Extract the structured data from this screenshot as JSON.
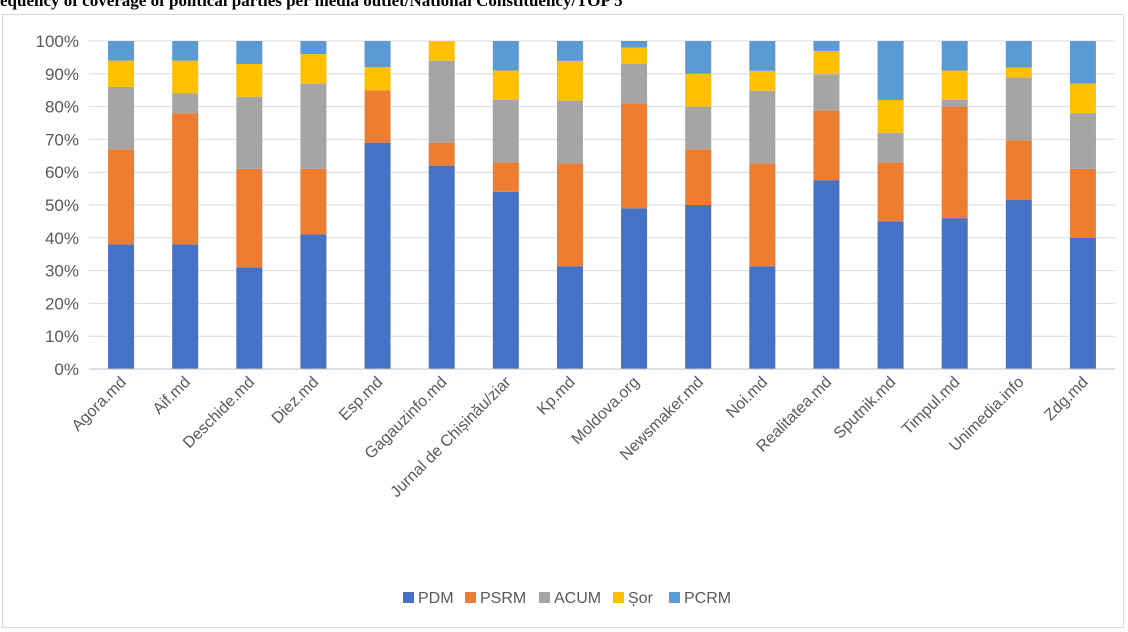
{
  "title": "equency of coverage of political parties per media outlet/National Constituency/TOP 5",
  "chart_data": {
    "type": "bar",
    "stacked": true,
    "percent": true,
    "title": "",
    "xlabel": "",
    "ylabel": "",
    "ylim": [
      0,
      100
    ],
    "yticks": [
      "0%",
      "10%",
      "20%",
      "30%",
      "40%",
      "50%",
      "60%",
      "70%",
      "80%",
      "90%",
      "100%"
    ],
    "grid": true,
    "legend_position": "bottom",
    "categories": [
      "Agora.md",
      "Aif.md",
      "Deschide.md",
      "Diez.md",
      "Esp.md",
      "Gagauzinfo.md",
      "Jurnal de Chișinău/ziar",
      "Kp.md",
      "Moldova.org",
      "Newsmaker.md",
      "Noi.md",
      "Realitatea.md",
      "Sputnik.md",
      "Timpul.md",
      "Unimedia.info",
      "Zdg.md"
    ],
    "series": [
      {
        "name": "PDM",
        "color": "#4472c4",
        "values": [
          38,
          38,
          31,
          41,
          69,
          62,
          54,
          31,
          49,
          50,
          31,
          57,
          45,
          46,
          51,
          40
        ]
      },
      {
        "name": "PSRM",
        "color": "#ed7d31",
        "values": [
          29,
          40,
          30,
          20,
          16,
          7,
          9,
          31,
          32,
          17,
          31,
          21,
          18,
          34,
          18,
          21
        ]
      },
      {
        "name": "ACUM",
        "color": "#a5a5a5",
        "values": [
          19,
          6,
          22,
          26,
          0,
          25,
          19,
          19,
          12,
          13,
          22,
          11,
          9,
          2,
          19,
          17
        ]
      },
      {
        "name": "Șor",
        "color": "#ffc000",
        "values": [
          8,
          10,
          10,
          9,
          7,
          6,
          9,
          12,
          5,
          10,
          6,
          7,
          10,
          9,
          3,
          9
        ]
      },
      {
        "name": "PCRM",
        "color": "#5b9bd5",
        "values": [
          6,
          6,
          7,
          4,
          8,
          0,
          9,
          6,
          2,
          10,
          9,
          3,
          18,
          9,
          8,
          13
        ]
      }
    ]
  }
}
